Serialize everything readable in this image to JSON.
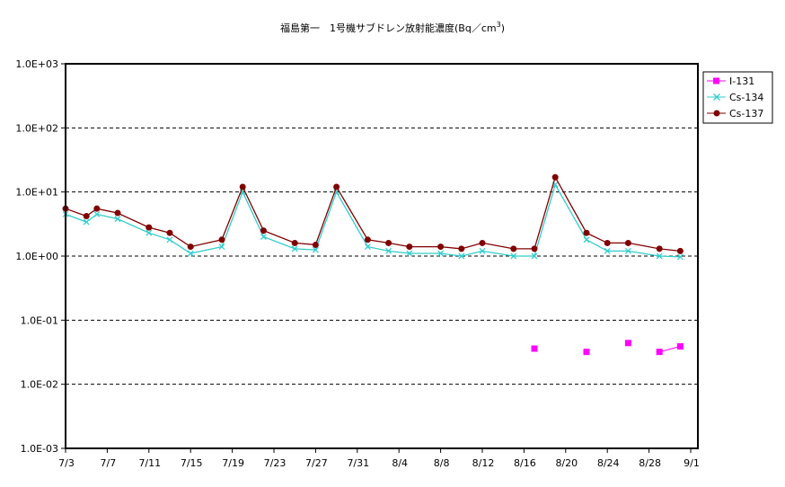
{
  "chart_data": {
    "type": "line",
    "title": "福島第一 1号機サブドレン放射能濃度（Bq／cm3）",
    "title_main": "福島第一　1号機サブドレン放射能濃度(Bq／cm",
    "title_sup": "3",
    "title_close": ")",
    "yscale": "log",
    "ylim": [
      0.001,
      1000
    ],
    "y_ticks": [
      "1.0E+03",
      "1.0E+02",
      "1.0E+01",
      "1.0E+00",
      "1.0E-01",
      "1.0E-02",
      "1.0E-03"
    ],
    "x_ticks": [
      "7/3",
      "7/7",
      "7/11",
      "7/15",
      "7/19",
      "7/23",
      "7/27",
      "7/31",
      "8/4",
      "8/8",
      "8/12",
      "8/16",
      "8/20",
      "8/24",
      "8/28",
      "9/1"
    ],
    "grid": "horizontal dashed",
    "legend_position": "top-right",
    "series": [
      {
        "name": "I-131",
        "color": "#ff00ff",
        "marker": "square",
        "points": [
          {
            "date": "2011-08-17",
            "value": 0.036
          },
          {
            "date": "2011-08-22",
            "value": 0.032
          },
          {
            "date": "2011-08-26",
            "value": 0.044
          },
          {
            "date": "2011-08-29",
            "value": 0.032
          },
          {
            "date": "2011-08-31",
            "value": 0.039
          }
        ],
        "segments": [
          [
            3,
            4
          ]
        ]
      },
      {
        "name": "Cs-134",
        "color": "#33cccc",
        "marker": "x",
        "points": [
          {
            "date": "2011-07-03",
            "value": 4.5
          },
          {
            "date": "2011-07-05",
            "value": 3.4
          },
          {
            "date": "2011-07-06",
            "value": 4.5
          },
          {
            "date": "2011-07-08",
            "value": 3.8
          },
          {
            "date": "2011-07-11",
            "value": 2.3
          },
          {
            "date": "2011-07-13",
            "value": 1.8
          },
          {
            "date": "2011-07-15",
            "value": 1.1
          },
          {
            "date": "2011-07-18",
            "value": 1.4
          },
          {
            "date": "2011-07-20",
            "value": 10
          },
          {
            "date": "2011-07-22",
            "value": 2.0
          },
          {
            "date": "2011-07-25",
            "value": 1.3
          },
          {
            "date": "2011-07-27",
            "value": 1.25
          },
          {
            "date": "2011-07-29",
            "value": 10
          },
          {
            "date": "2011-08-01",
            "value": 1.4
          },
          {
            "date": "2011-08-03",
            "value": 1.2
          },
          {
            "date": "2011-08-05",
            "value": 1.1
          },
          {
            "date": "2011-08-08",
            "value": 1.1
          },
          {
            "date": "2011-08-10",
            "value": 1.0
          },
          {
            "date": "2011-08-12",
            "value": 1.2
          },
          {
            "date": "2011-08-15",
            "value": 1.0
          },
          {
            "date": "2011-08-17",
            "value": 1.0
          },
          {
            "date": "2011-08-19",
            "value": 13
          },
          {
            "date": "2011-08-22",
            "value": 1.8
          },
          {
            "date": "2011-08-24",
            "value": 1.2
          },
          {
            "date": "2011-08-26",
            "value": 1.2
          },
          {
            "date": "2011-08-29",
            "value": 1.0
          },
          {
            "date": "2011-08-31",
            "value": 0.97
          }
        ]
      },
      {
        "name": "Cs-137",
        "color": "#800000",
        "marker": "circle",
        "points": [
          {
            "date": "2011-07-03",
            "value": 5.5
          },
          {
            "date": "2011-07-05",
            "value": 4.2
          },
          {
            "date": "2011-07-06",
            "value": 5.5
          },
          {
            "date": "2011-07-08",
            "value": 4.7
          },
          {
            "date": "2011-07-11",
            "value": 2.8
          },
          {
            "date": "2011-07-13",
            "value": 2.3
          },
          {
            "date": "2011-07-15",
            "value": 1.4
          },
          {
            "date": "2011-07-18",
            "value": 1.8
          },
          {
            "date": "2011-07-20",
            "value": 12
          },
          {
            "date": "2011-07-22",
            "value": 2.5
          },
          {
            "date": "2011-07-25",
            "value": 1.6
          },
          {
            "date": "2011-07-27",
            "value": 1.5
          },
          {
            "date": "2011-07-29",
            "value": 12
          },
          {
            "date": "2011-08-01",
            "value": 1.8
          },
          {
            "date": "2011-08-03",
            "value": 1.6
          },
          {
            "date": "2011-08-05",
            "value": 1.4
          },
          {
            "date": "2011-08-08",
            "value": 1.4
          },
          {
            "date": "2011-08-10",
            "value": 1.3
          },
          {
            "date": "2011-08-12",
            "value": 1.6
          },
          {
            "date": "2011-08-15",
            "value": 1.3
          },
          {
            "date": "2011-08-17",
            "value": 1.3
          },
          {
            "date": "2011-08-19",
            "value": 17
          },
          {
            "date": "2011-08-22",
            "value": 2.3
          },
          {
            "date": "2011-08-24",
            "value": 1.6
          },
          {
            "date": "2011-08-26",
            "value": 1.6
          },
          {
            "date": "2011-08-29",
            "value": 1.3
          },
          {
            "date": "2011-08-31",
            "value": 1.2
          }
        ]
      }
    ]
  }
}
